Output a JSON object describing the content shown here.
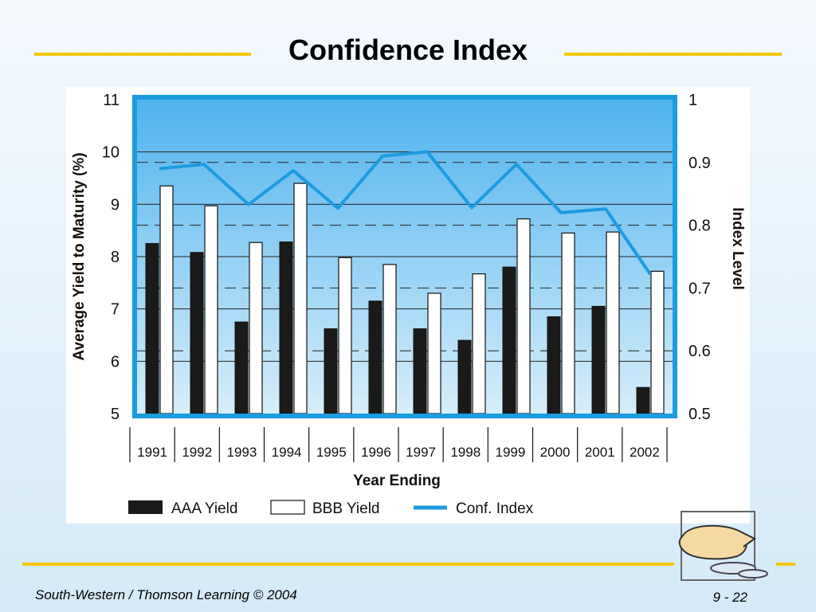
{
  "slide": {
    "title": "Confidence Index",
    "footer_left": "South-Western / Thomson Learning © 2004",
    "footer_right": "9 - 22"
  },
  "colors": {
    "accent_rule": "#f5c400",
    "plot_bg_top": "#4fb3ee",
    "plot_bg_bottom": "#d7eefb",
    "frame": "#1c9be0",
    "aaa_bar": "#1a1a1a",
    "bbb_bar": "#ffffff",
    "index_line": "#1c9be0"
  },
  "chart_data": {
    "type": "bar",
    "title": "",
    "xlabel": "Year Ending",
    "ylabel": "Average Yield to Maturity (%)",
    "y2label": "Index Level",
    "categories": [
      "1991",
      "1992",
      "1993",
      "1994",
      "1995",
      "1996",
      "1997",
      "1998",
      "1999",
      "2000",
      "2001",
      "2002"
    ],
    "ylim": [
      5,
      11
    ],
    "yticks": [
      "5",
      "6",
      "7",
      "8",
      "9",
      "10",
      "11"
    ],
    "y2lim": [
      0.5,
      1.0
    ],
    "y2ticks": [
      "0.5",
      "0.6",
      "0.7",
      "0.8",
      "0.9",
      "1"
    ],
    "solid_gridlines_y": [
      6,
      7,
      8,
      9,
      10
    ],
    "dashed_gridlines_y2": [
      0.6,
      0.7,
      0.8,
      0.9
    ],
    "series": [
      {
        "name": "AAA Yield",
        "type": "bar",
        "axis": "left",
        "values": [
          8.25,
          8.08,
          6.75,
          8.28,
          6.62,
          7.15,
          6.62,
          6.4,
          7.8,
          6.85,
          7.05,
          5.5
        ]
      },
      {
        "name": "BBB Yield",
        "type": "bar",
        "axis": "left",
        "values": [
          9.35,
          8.97,
          8.27,
          9.4,
          7.98,
          7.85,
          7.3,
          7.67,
          8.72,
          8.45,
          8.47,
          7.72
        ]
      },
      {
        "name": "Conf. Index",
        "type": "line",
        "axis": "right",
        "values": [
          0.89,
          0.897,
          0.833,
          0.887,
          0.827,
          0.91,
          0.917,
          0.828,
          0.897,
          0.82,
          0.826,
          0.722
        ]
      }
    ],
    "legend_position": "bottom"
  }
}
